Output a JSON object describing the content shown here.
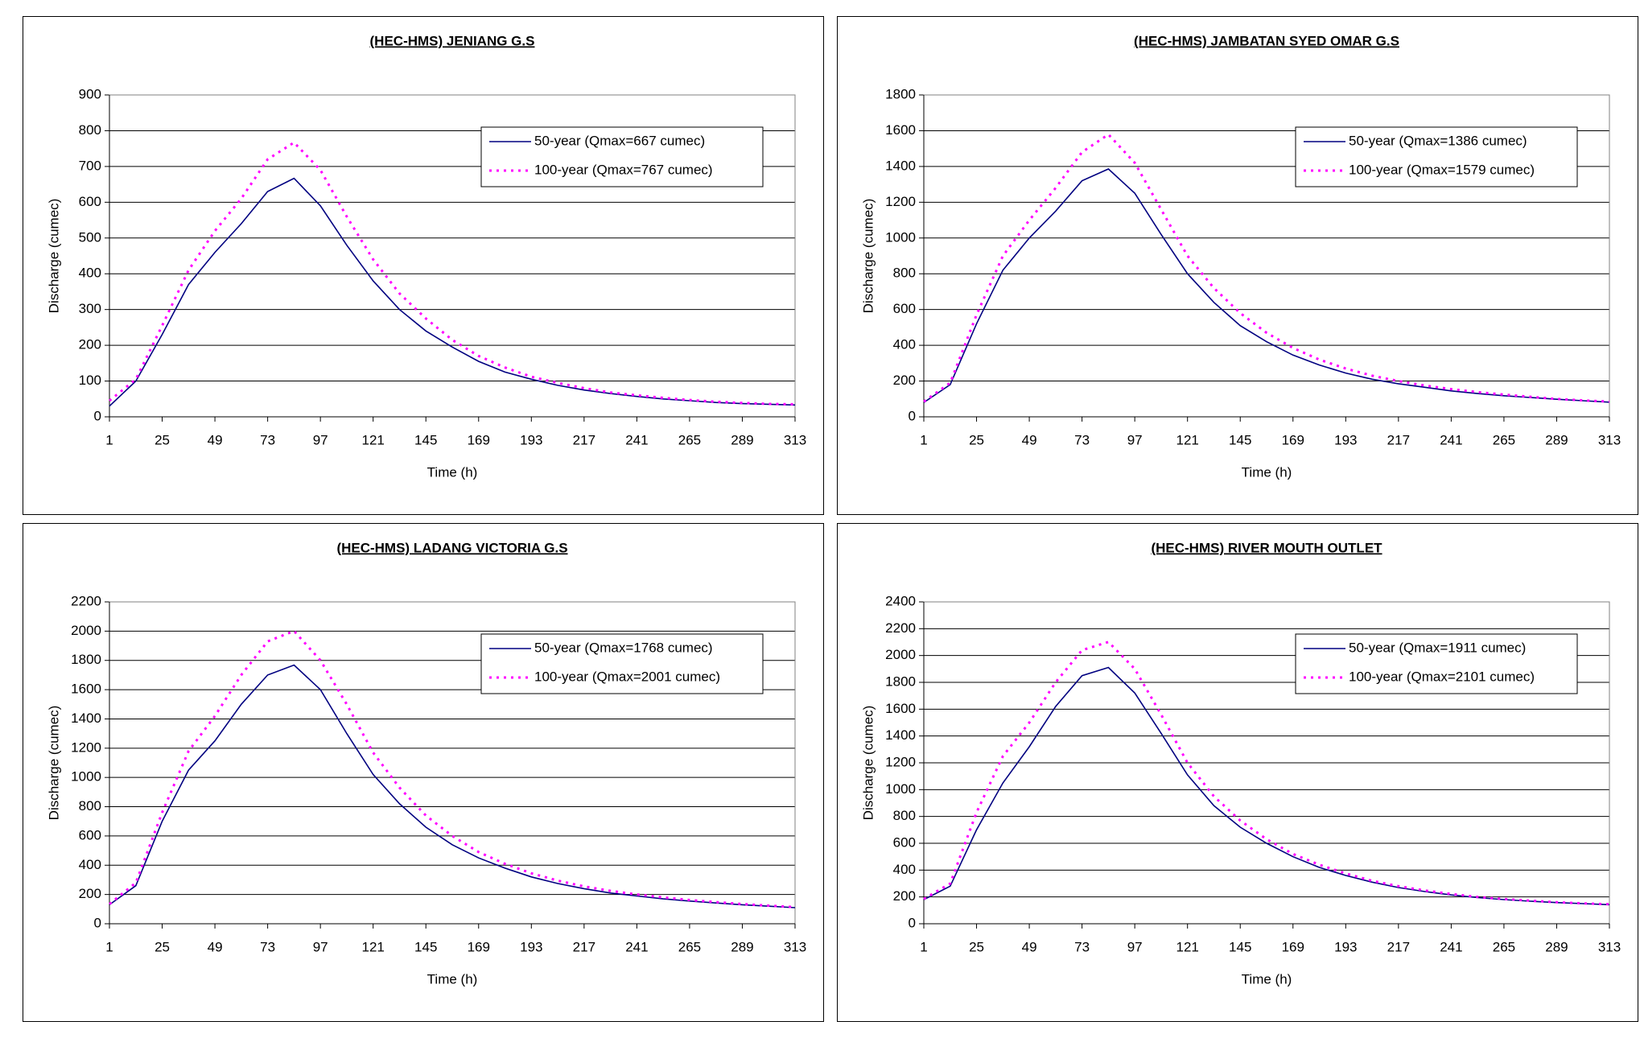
{
  "chart_data": [
    {
      "type": "line",
      "title": "(HEC-HMS) JENIANG G.S",
      "x_label": "Time (h)",
      "y_label": "Discharge (cumec)",
      "x": [
        1,
        13,
        25,
        37,
        49,
        61,
        73,
        85,
        97,
        109,
        121,
        133,
        145,
        157,
        169,
        181,
        193,
        205,
        217,
        229,
        241,
        253,
        265,
        277,
        289,
        301,
        313
      ],
      "xlim": [
        1,
        313
      ],
      "xticks": [
        1,
        25,
        49,
        73,
        97,
        121,
        145,
        169,
        193,
        217,
        241,
        265,
        289,
        313
      ],
      "ylim": [
        0,
        900
      ],
      "yticks": [
        0,
        100,
        200,
        300,
        400,
        500,
        600,
        700,
        800,
        900
      ],
      "grid": true,
      "legend": "upper right",
      "series": [
        {
          "name": "50-year (Qmax=667 cumec)",
          "color": "#000080",
          "linestyle": "solid",
          "values": [
            30,
            100,
            230,
            370,
            460,
            540,
            630,
            667,
            590,
            480,
            380,
            300,
            240,
            195,
            155,
            125,
            105,
            88,
            75,
            65,
            57,
            50,
            45,
            40,
            37,
            35,
            33
          ]
        },
        {
          "name": "100-year (Qmax=767 cumec)",
          "color": "#ff00ff",
          "linestyle": "dotted",
          "values": [
            45,
            105,
            255,
            410,
            520,
            610,
            720,
            767,
            690,
            560,
            440,
            345,
            275,
            215,
            170,
            138,
            112,
            95,
            80,
            68,
            60,
            53,
            47,
            42,
            39,
            36,
            35
          ]
        }
      ]
    },
    {
      "type": "line",
      "title": "(HEC-HMS) JAMBATAN SYED OMAR G.S",
      "x_label": "Time (h)",
      "y_label": "Discharge (cumec)",
      "x": [
        1,
        13,
        25,
        37,
        49,
        61,
        73,
        85,
        97,
        109,
        121,
        133,
        145,
        157,
        169,
        181,
        193,
        205,
        217,
        229,
        241,
        253,
        265,
        277,
        289,
        301,
        313
      ],
      "xlim": [
        1,
        313
      ],
      "xticks": [
        1,
        25,
        49,
        73,
        97,
        121,
        145,
        169,
        193,
        217,
        241,
        265,
        289,
        313
      ],
      "ylim": [
        0,
        1800
      ],
      "yticks": [
        0,
        200,
        400,
        600,
        800,
        1000,
        1200,
        1400,
        1600,
        1800
      ],
      "grid": true,
      "legend": "upper right",
      "series": [
        {
          "name": "50-year (Qmax=1386 cumec)",
          "color": "#000080",
          "linestyle": "solid",
          "values": [
            80,
            180,
            520,
            820,
            1000,
            1150,
            1320,
            1386,
            1250,
            1020,
            800,
            640,
            510,
            420,
            345,
            290,
            245,
            210,
            185,
            165,
            145,
            130,
            118,
            108,
            98,
            90,
            82
          ]
        },
        {
          "name": "100-year (Qmax=1579 cumec)",
          "color": "#ff00ff",
          "linestyle": "dotted",
          "values": [
            85,
            190,
            570,
            900,
            1100,
            1280,
            1480,
            1579,
            1420,
            1160,
            900,
            720,
            580,
            470,
            385,
            320,
            270,
            230,
            200,
            175,
            155,
            138,
            124,
            112,
            100,
            92,
            85
          ]
        }
      ]
    },
    {
      "type": "line",
      "title": "(HEC-HMS) LADANG VICTORIA G.S",
      "x_label": "Time (h)",
      "y_label": "Discharge (cumec)",
      "x": [
        1,
        13,
        25,
        37,
        49,
        61,
        73,
        85,
        97,
        109,
        121,
        133,
        145,
        157,
        169,
        181,
        193,
        205,
        217,
        229,
        241,
        253,
        265,
        277,
        289,
        301,
        313
      ],
      "xlim": [
        1,
        313
      ],
      "xticks": [
        1,
        25,
        49,
        73,
        97,
        121,
        145,
        169,
        193,
        217,
        241,
        265,
        289,
        313
      ],
      "ylim": [
        0,
        2200
      ],
      "yticks": [
        0,
        200,
        400,
        600,
        800,
        1000,
        1200,
        1400,
        1600,
        1800,
        2000,
        2200
      ],
      "grid": true,
      "legend": "upper right",
      "series": [
        {
          "name": "50-year (Qmax=1768 cumec)",
          "color": "#000080",
          "linestyle": "solid",
          "values": [
            130,
            260,
            700,
            1050,
            1250,
            1500,
            1700,
            1768,
            1600,
            1300,
            1020,
            820,
            660,
            540,
            450,
            380,
            320,
            275,
            240,
            210,
            190,
            170,
            155,
            142,
            130,
            120,
            110
          ]
        },
        {
          "name": "100-year (Qmax=2001 cumec)",
          "color": "#ff00ff",
          "linestyle": "dotted",
          "values": [
            135,
            280,
            760,
            1180,
            1420,
            1700,
            1930,
            2001,
            1800,
            1500,
            1170,
            930,
            740,
            600,
            490,
            410,
            345,
            295,
            255,
            225,
            200,
            180,
            162,
            148,
            135,
            124,
            114
          ]
        }
      ]
    },
    {
      "type": "line",
      "title": "(HEC-HMS) RIVER MOUTH OUTLET",
      "x_label": "Time (h)",
      "y_label": "Discharge (cumec)",
      "x": [
        1,
        13,
        25,
        37,
        49,
        61,
        73,
        85,
        97,
        109,
        121,
        133,
        145,
        157,
        169,
        181,
        193,
        205,
        217,
        229,
        241,
        253,
        265,
        277,
        289,
        301,
        313
      ],
      "xlim": [
        1,
        313
      ],
      "xticks": [
        1,
        25,
        49,
        73,
        97,
        121,
        145,
        169,
        193,
        217,
        241,
        265,
        289,
        313
      ],
      "ylim": [
        0,
        2400
      ],
      "yticks": [
        0,
        200,
        400,
        600,
        800,
        1000,
        1200,
        1400,
        1600,
        1800,
        2000,
        2200,
        2400
      ],
      "grid": true,
      "legend": "upper right",
      "series": [
        {
          "name": "50-year (Qmax=1911 cumec)",
          "color": "#000080",
          "linestyle": "solid",
          "values": [
            180,
            280,
            700,
            1050,
            1320,
            1620,
            1850,
            1911,
            1720,
            1420,
            1110,
            880,
            720,
            600,
            500,
            420,
            360,
            310,
            270,
            240,
            215,
            195,
            180,
            168,
            158,
            150,
            142
          ]
        },
        {
          "name": "100-year (Qmax=2101 cumec)",
          "color": "#ff00ff",
          "linestyle": "dotted",
          "values": [
            185,
            300,
            830,
            1250,
            1500,
            1800,
            2040,
            2101,
            1900,
            1560,
            1200,
            950,
            770,
            630,
            520,
            440,
            375,
            320,
            280,
            248,
            222,
            200,
            184,
            172,
            160,
            152,
            145
          ]
        }
      ]
    }
  ]
}
